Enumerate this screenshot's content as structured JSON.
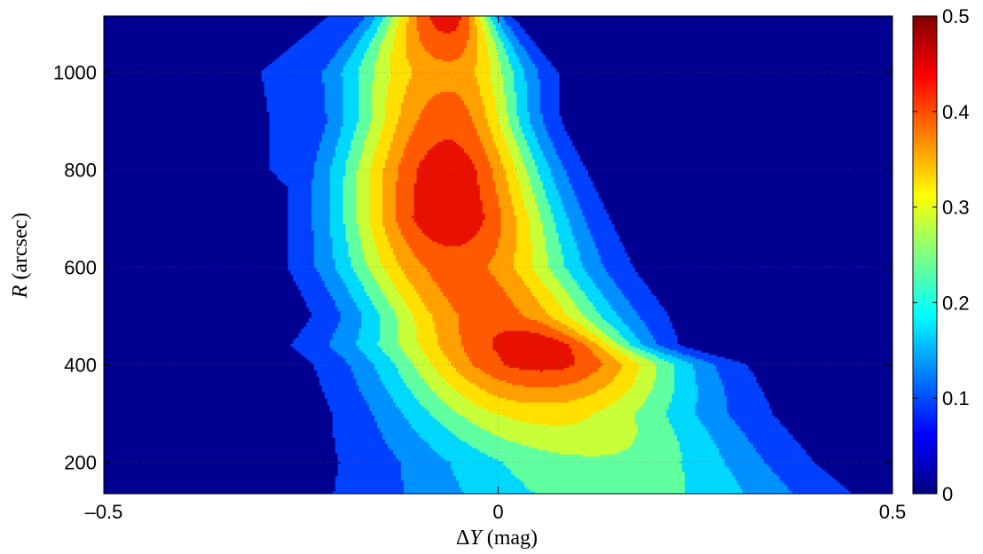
{
  "chart_data": {
    "type": "heatmap",
    "subtype": "filled-contour",
    "xlabel": "ΔY (mag)",
    "ylabel": "R (arcsec)",
    "xlim": [
      -0.5,
      0.5
    ],
    "ylim": [
      135,
      1115
    ],
    "xticks": [
      -0.5,
      0,
      0.5
    ],
    "xtick_labels": [
      "–0.5",
      "0",
      "0.5"
    ],
    "yticks": [
      200,
      400,
      600,
      800,
      1000
    ],
    "ytick_labels": [
      "200",
      "400",
      "600",
      "800",
      "1000"
    ],
    "grid": true,
    "colormap": "jet",
    "colorbar": {
      "range": [
        0,
        0.5
      ],
      "ticks": [
        0,
        0.1,
        0.2,
        0.3,
        0.4,
        0.5
      ],
      "tick_labels": [
        "0",
        "0.1",
        "0.2",
        "0.3",
        "0.4",
        "0.5"
      ],
      "placement": "right"
    },
    "levels": [
      0.05,
      0.1,
      0.15,
      0.2,
      0.25,
      0.3,
      0.35,
      0.4,
      0.45
    ],
    "level_colors": [
      "#000090",
      "#0040FF",
      "#0090FF",
      "#00D8FF",
      "#60FFA0",
      "#C8FF38",
      "#FFE000",
      "#FFA000",
      "#FF5A00",
      "#E81000",
      "#A00000"
    ],
    "y": [
      1115,
      1000,
      900,
      800,
      700,
      600,
      500,
      440,
      400,
      300,
      200,
      135
    ],
    "peak_x": [
      -0.063,
      -0.063,
      -0.063,
      -0.063,
      -0.063,
      -0.055,
      -0.01,
      0.055,
      0.055,
      0.055,
      0.13,
      0.15
    ],
    "peak_value": [
      0.48,
      0.38,
      0.43,
      0.48,
      0.49,
      0.42,
      0.42,
      0.48,
      0.47,
      0.32,
      0.24,
      0.22
    ],
    "half_width_left": [
      0.085,
      0.14,
      0.13,
      0.14,
      0.14,
      0.15,
      0.16,
      0.22,
      0.2,
      0.2,
      0.27,
      0.3
    ],
    "half_width_right": [
      0.055,
      0.1,
      0.1,
      0.12,
      0.14,
      0.16,
      0.16,
      0.12,
      0.18,
      0.22,
      0.22,
      0.25
    ],
    "boundary_0_05_left": [
      -0.25,
      -0.36,
      -0.35,
      -0.35,
      -0.28,
      -0.26,
      -0.22,
      -0.17,
      -0.17,
      -0.16,
      -0.2,
      -0.2
    ],
    "boundary_0_05_right": [
      0.03,
      0.1,
      0.12,
      0.12,
      0.14,
      0.18,
      0.24,
      0.25,
      0.29,
      0.33,
      0.35,
      0.38
    ]
  }
}
